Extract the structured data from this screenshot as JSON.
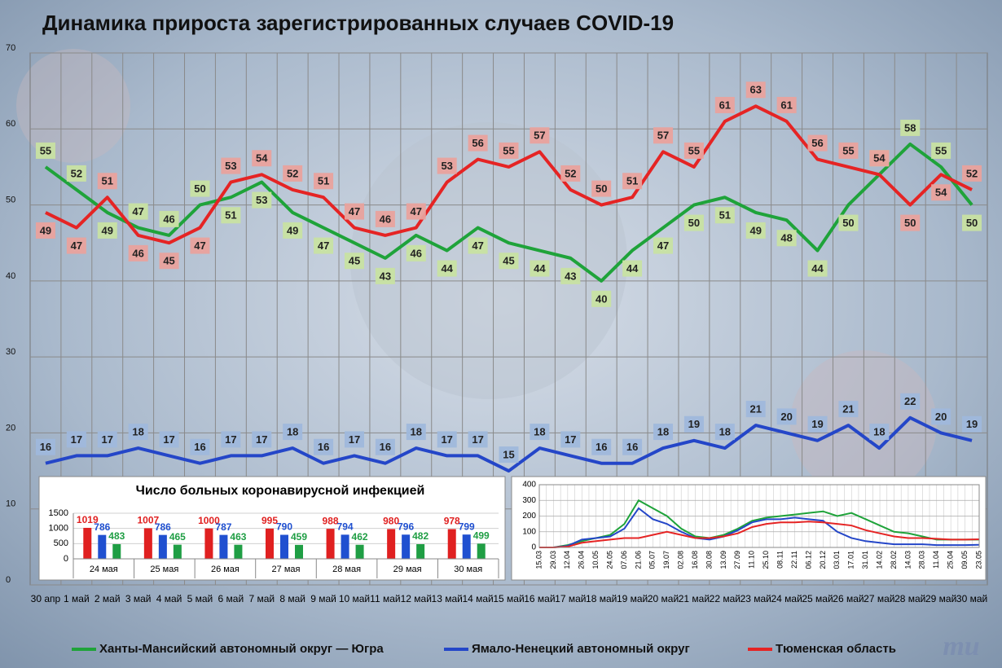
{
  "chart_data": [
    {
      "type": "line",
      "title": "Динамика прироста зарегистрированных случаев COVID-19",
      "categories": [
        "30 апр",
        "1 май",
        "2 май",
        "3 май",
        "4 май",
        "5 май",
        "6 май",
        "7 май",
        "8 май",
        "9 май",
        "10 май",
        "11 май",
        "12 май",
        "13 май",
        "14 май",
        "15 май",
        "16 май",
        "17 май",
        "18 май",
        "19 май",
        "20 май",
        "21 май",
        "22 май",
        "23 май",
        "24 май",
        "25 май",
        "26 май",
        "27 май",
        "28 май",
        "29 май",
        "30 май"
      ],
      "series": [
        {
          "name": "Ханты-Мансийский автономный округ — Югра",
          "color": "#1fa33a",
          "values": [
            55,
            52,
            49,
            47,
            46,
            50,
            51,
            53,
            49,
            47,
            45,
            43,
            46,
            44,
            47,
            45,
            44,
            43,
            40,
            44,
            47,
            50,
            51,
            49,
            48,
            44,
            50,
            54,
            58,
            55,
            50
          ]
        },
        {
          "name": "Ямало-Ненецкий автономный округ",
          "color": "#2446c8",
          "values": [
            16,
            17,
            17,
            18,
            17,
            16,
            17,
            17,
            18,
            16,
            17,
            16,
            18,
            17,
            17,
            15,
            18,
            17,
            16,
            16,
            18,
            19,
            18,
            21,
            20,
            19,
            21,
            18,
            22,
            20,
            19
          ]
        },
        {
          "name": "Тюменская область",
          "color": "#e52424",
          "values": [
            49,
            47,
            51,
            46,
            45,
            47,
            53,
            54,
            52,
            51,
            47,
            46,
            47,
            53,
            56,
            55,
            57,
            52,
            50,
            51,
            57,
            55,
            61,
            63,
            61,
            56,
            55,
            54,
            50,
            54,
            52
          ]
        }
      ],
      "ylim": [
        0,
        70
      ],
      "yticks": [
        0,
        10,
        20,
        30,
        40,
        50,
        60,
        70
      ],
      "grid": true
    },
    {
      "type": "bar",
      "title": "Число больных коронавирусной инфекцией",
      "categories": [
        "24 мая",
        "25 мая",
        "26 мая",
        "27 мая",
        "28 мая",
        "29 мая",
        "30 мая"
      ],
      "series": [
        {
          "color": "#e02020",
          "values": [
            1019,
            1007,
            1000,
            995,
            988,
            980,
            978
          ]
        },
        {
          "color": "#2050d0",
          "values": [
            786,
            786,
            787,
            790,
            794,
            796,
            799
          ]
        },
        {
          "color": "#1f9e44",
          "values": [
            483,
            465,
            463,
            459,
            462,
            482,
            499
          ]
        }
      ],
      "ylim": [
        0,
        1500
      ],
      "yticks": [
        0,
        500,
        1000,
        1500
      ],
      "grid": true
    },
    {
      "type": "line",
      "categories": [
        "15.03",
        "29.03",
        "12.04",
        "26.04",
        "10.05",
        "24.05",
        "07.06",
        "21.06",
        "05.07",
        "19.07",
        "02.08",
        "16.08",
        "30.08",
        "13.09",
        "27.09",
        "11.10",
        "25.10",
        "08.11",
        "22.11",
        "06.12",
        "20.12",
        "03.01",
        "17.01",
        "31.01",
        "14.02",
        "28.02",
        "14.03",
        "28.03",
        "11.04",
        "25.04",
        "09.05",
        "23.05"
      ],
      "series": [
        {
          "color": "#1fa33a",
          "values": [
            0,
            0,
            15,
            40,
            60,
            80,
            150,
            300,
            250,
            200,
            120,
            70,
            60,
            80,
            120,
            170,
            190,
            200,
            210,
            220,
            230,
            200,
            220,
            180,
            140,
            100,
            90,
            70,
            50,
            50,
            50,
            50
          ]
        },
        {
          "color": "#2446c8",
          "values": [
            0,
            0,
            10,
            50,
            60,
            70,
            120,
            250,
            180,
            150,
            100,
            60,
            50,
            70,
            110,
            160,
            180,
            180,
            190,
            180,
            170,
            100,
            60,
            40,
            30,
            20,
            20,
            20,
            15,
            15,
            15,
            17
          ]
        },
        {
          "color": "#e52424",
          "values": [
            0,
            0,
            5,
            30,
            40,
            50,
            60,
            60,
            80,
            100,
            80,
            60,
            60,
            70,
            90,
            130,
            150,
            160,
            160,
            165,
            160,
            150,
            140,
            110,
            90,
            70,
            60,
            60,
            55,
            50,
            50,
            52
          ]
        }
      ],
      "ylim": [
        0,
        400
      ],
      "yticks": [
        0,
        100,
        200,
        300,
        400
      ],
      "grid": true
    }
  ]
}
